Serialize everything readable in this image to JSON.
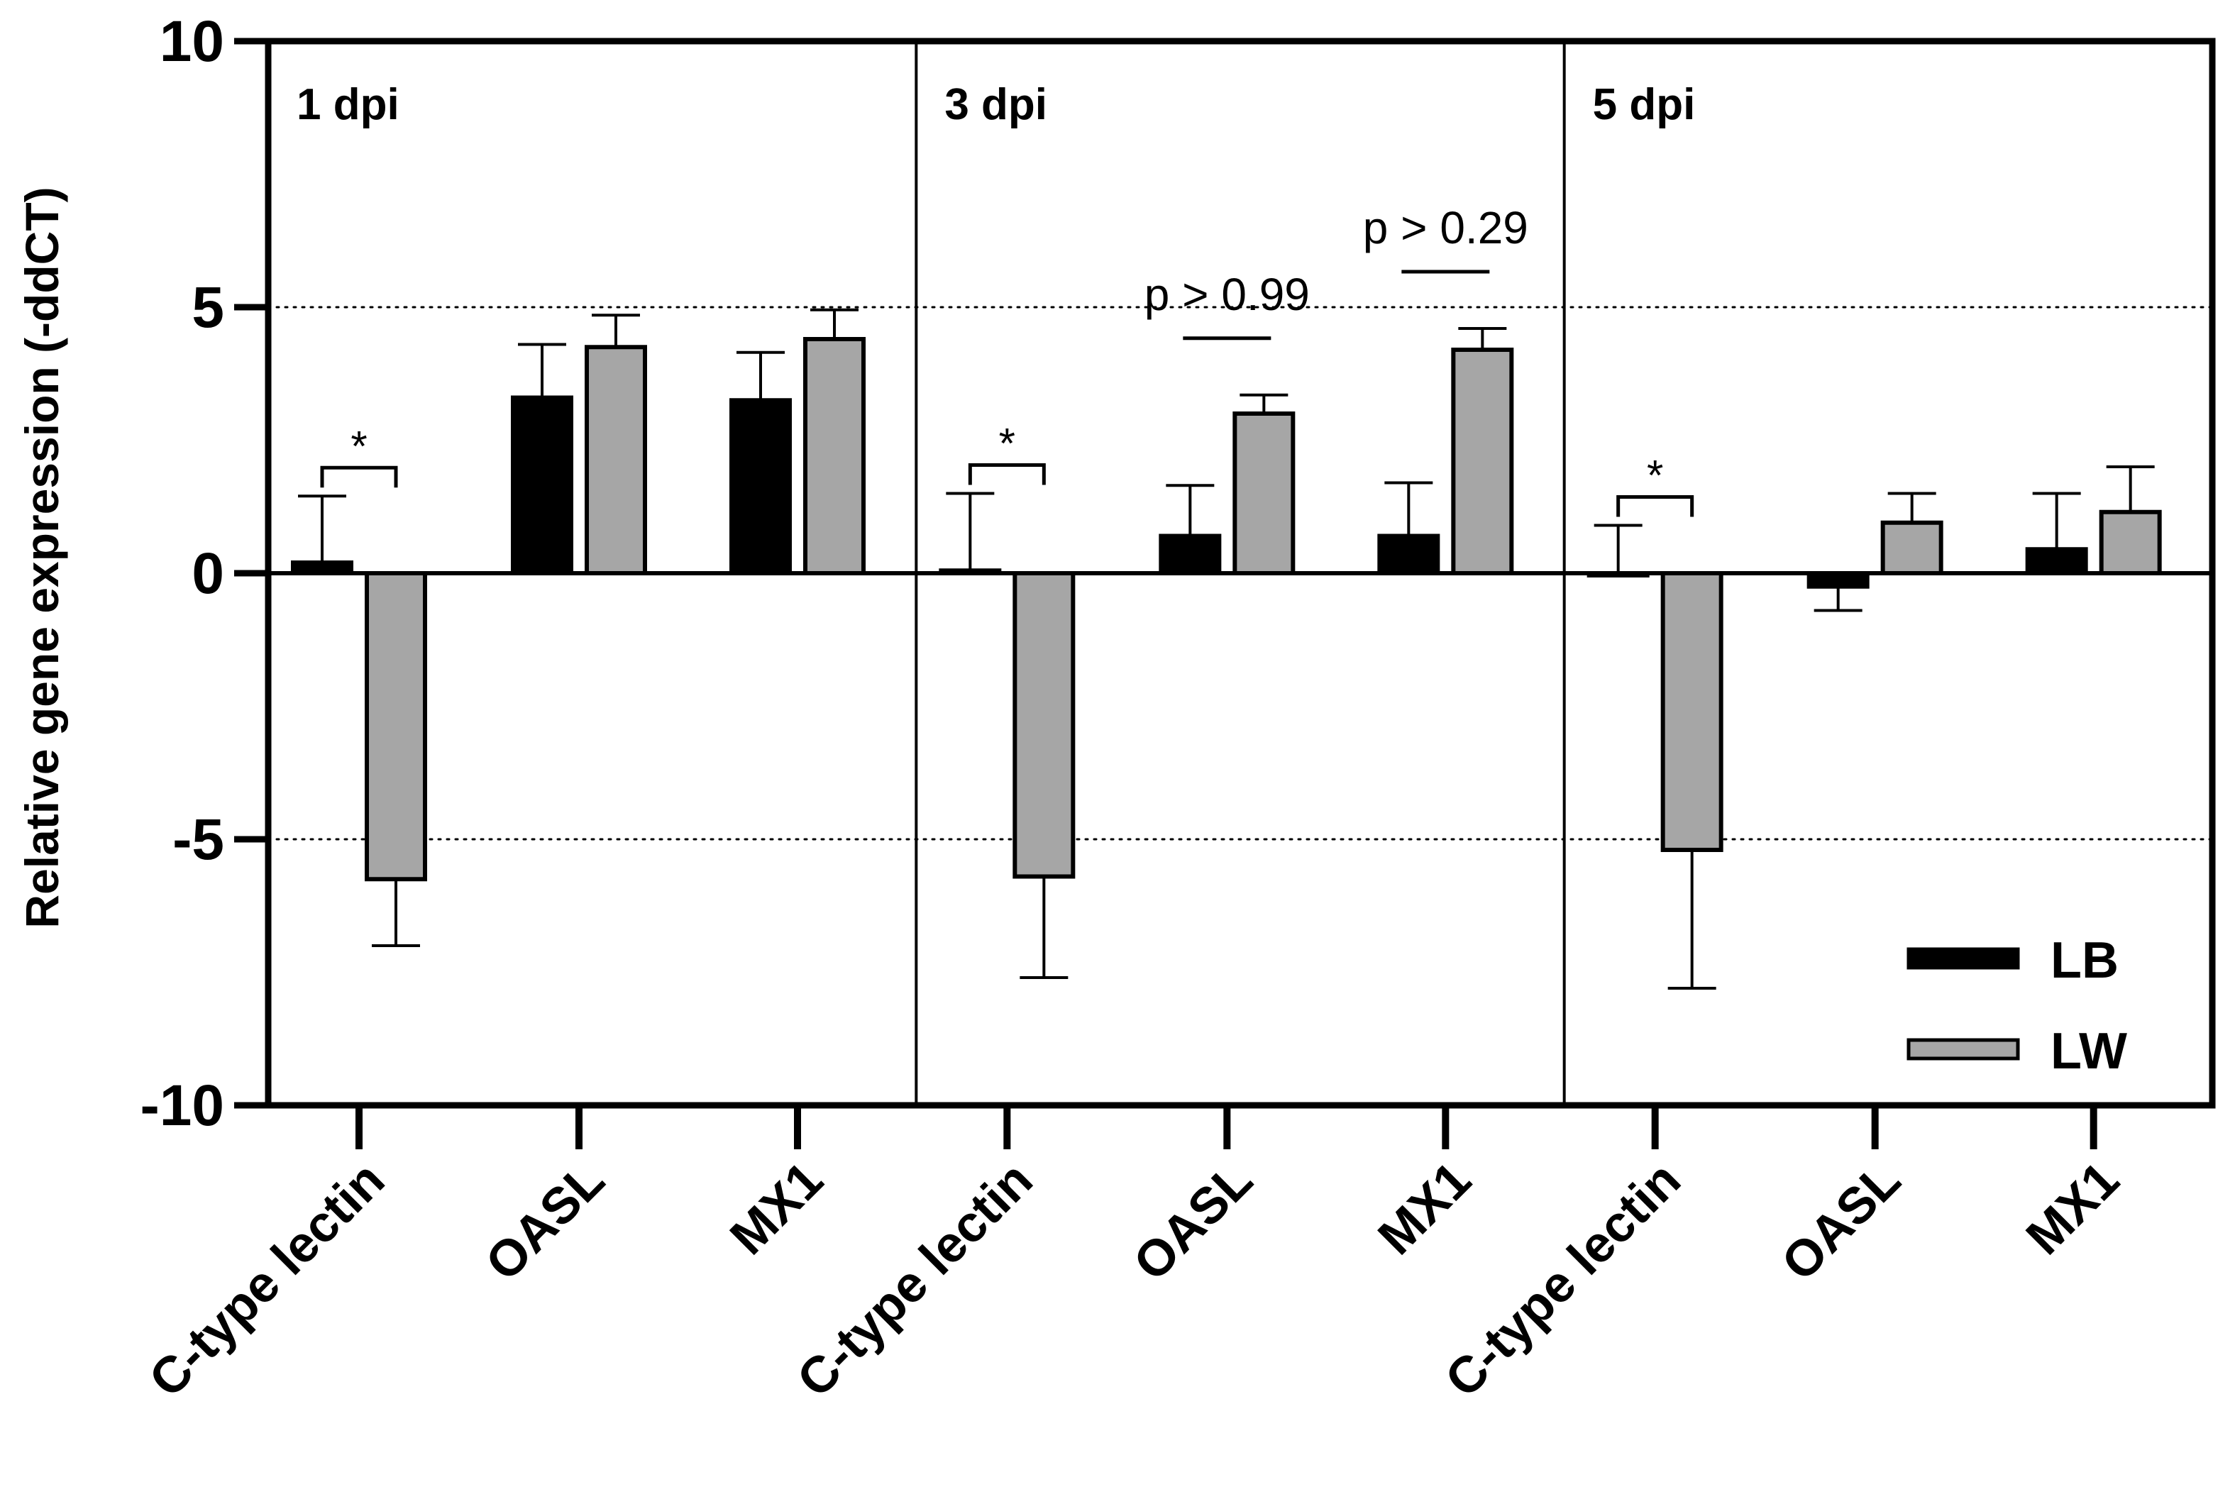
{
  "chart_data": {
    "type": "bar",
    "ylabel": "Relative gene expression (-ddCT)",
    "ylim": [
      -10,
      10
    ],
    "yticks": [
      "10",
      "5",
      "0",
      "-5",
      "-10"
    ],
    "reference_lines": [
      5,
      -5
    ],
    "legend": {
      "placement": "bottom-right",
      "entries": [
        "LB",
        "LW"
      ]
    },
    "colors": {
      "LB": "#000000",
      "LW": "#a6a6a6"
    },
    "panels": [
      {
        "label": "1 dpi",
        "categories": [
          "C-type lectin",
          "OASL",
          "MX1"
        ],
        "series": [
          {
            "name": "LB",
            "values": [
              0.2,
              3.3,
              3.25
            ],
            "errors": [
              1.25,
              1.0,
              0.9
            ]
          },
          {
            "name": "LW",
            "values": [
              -5.75,
              4.25,
              4.4
            ],
            "errors": [
              1.25,
              0.6,
              0.55
            ]
          }
        ],
        "annotations": [
          {
            "category": 0,
            "text": "*"
          }
        ]
      },
      {
        "label": "3 dpi",
        "categories": [
          "C-type lectin",
          "OASL",
          "MX1"
        ],
        "series": [
          {
            "name": "LB",
            "values": [
              0.05,
              0.7,
              0.7
            ],
            "errors": [
              1.45,
              0.95,
              1.0
            ]
          },
          {
            "name": "LW",
            "values": [
              -5.7,
              3.0,
              4.2
            ],
            "errors": [
              1.9,
              0.35,
              0.4
            ]
          }
        ],
        "annotations": [
          {
            "category": 0,
            "text": "*"
          },
          {
            "category": 1,
            "text": "p > 0.99"
          },
          {
            "category": 2,
            "text": "p > 0.29"
          }
        ]
      },
      {
        "label": "5 dpi",
        "categories": [
          "C-type lectin",
          "OASL",
          "MX1"
        ],
        "series": [
          {
            "name": "LB",
            "values": [
              0.0,
              -0.25,
              0.45
            ],
            "errors": [
              0.9,
              0.45,
              1.05
            ]
          },
          {
            "name": "LW",
            "values": [
              -5.2,
              0.95,
              1.15
            ],
            "errors": [
              2.6,
              0.55,
              0.85
            ]
          }
        ],
        "annotations": [
          {
            "category": 0,
            "text": "*"
          }
        ]
      }
    ]
  }
}
